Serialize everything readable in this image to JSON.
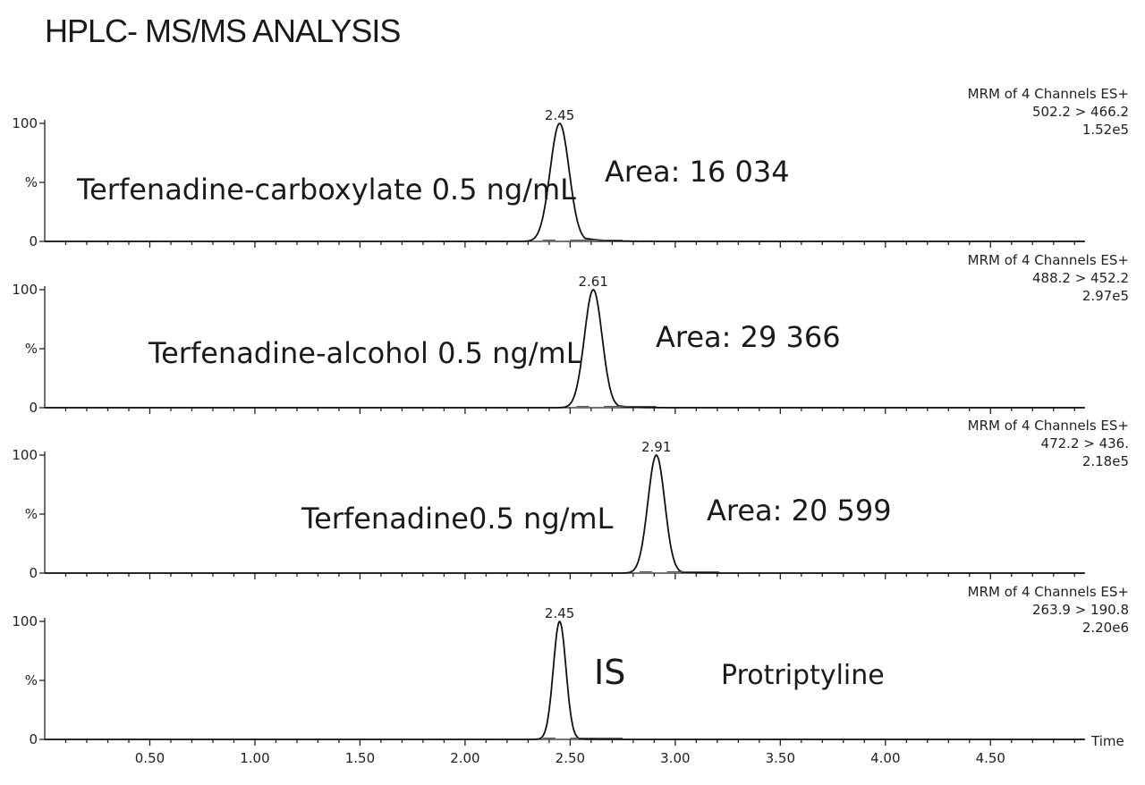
{
  "title": "HPLC- MS/MS ANALYSIS",
  "chart_data": {
    "type": "line",
    "x_label": "Time",
    "x_range": [
      0.0,
      4.95
    ],
    "x_ticks": [
      "0.50",
      "1.00",
      "1.50",
      "2.00",
      "2.50",
      "3.00",
      "3.50",
      "4.00",
      "4.50"
    ],
    "y_ticks": [
      "100",
      "%",
      "0"
    ],
    "panels": [
      {
        "header": [
          "MRM of 4 Channels ES+",
          "502.2 > 466.2",
          "1.52e5"
        ],
        "peak_rt": 2.45,
        "peak_label": "2.45",
        "peak_width": 0.045,
        "tail": 0.08,
        "annotations": [
          "Terfenadine-carboxylate 0.5 ng/mL",
          "Area: 16 034"
        ]
      },
      {
        "header": [
          "MRM of 4 Channels ES+",
          "488.2 > 452.2",
          "2.97e5"
        ],
        "peak_rt": 2.61,
        "peak_label": "2.61",
        "peak_width": 0.042,
        "tail": 0.06,
        "annotations": [
          "Terfenadine-alcohol 0.5 ng/mL",
          "Area: 29 366"
        ]
      },
      {
        "header": [
          "MRM of 4 Channels ES+",
          "472.2 > 436.",
          "2.18e5"
        ],
        "peak_rt": 2.91,
        "peak_label": "2.91",
        "peak_width": 0.04,
        "tail": 0.05,
        "annotations": [
          "Terfenadine0.5 ng/mL",
          "Area: 20 599"
        ]
      },
      {
        "header": [
          "MRM of 4 Channels ES+",
          "263.9 > 190.8",
          "2.20e6"
        ],
        "peak_rt": 2.45,
        "peak_label": "2.45",
        "peak_width": 0.03,
        "tail": 0.03,
        "annotations": [
          "IS",
          "Protriptyline"
        ]
      }
    ]
  }
}
